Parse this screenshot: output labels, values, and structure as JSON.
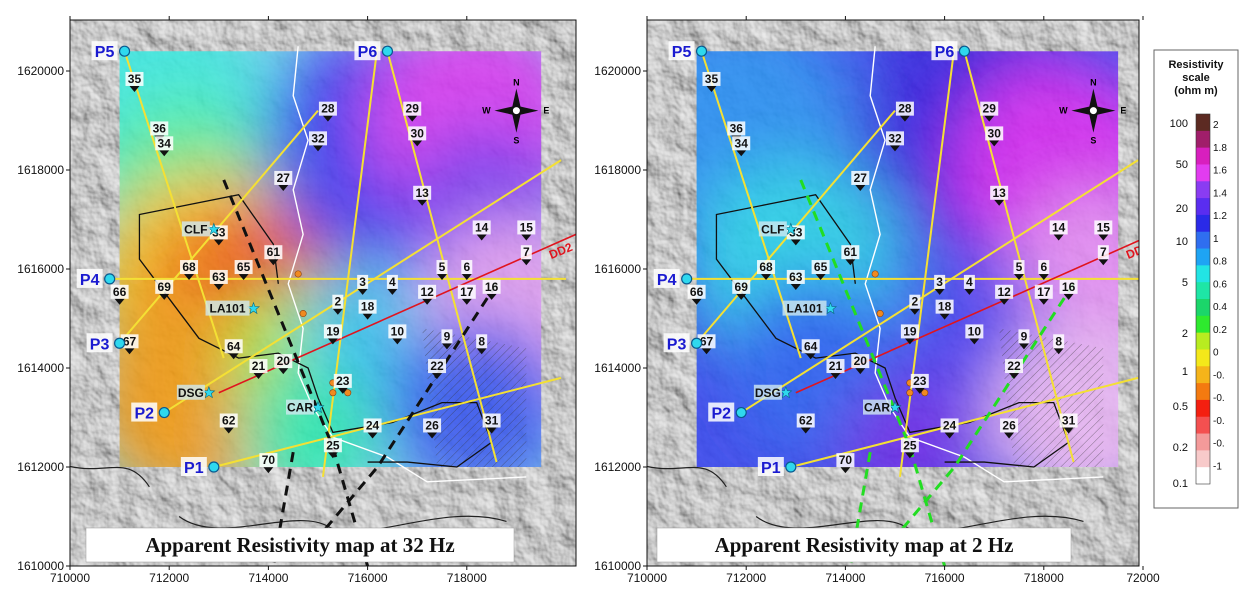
{
  "maps": [
    {
      "caption": "Apparent Resistivity map at 32 Hz",
      "variant": "32hz",
      "fault_color": "#111111",
      "x_ticks": [
        "710000",
        "712000",
        "714000",
        "716000",
        "718000"
      ],
      "y_ticks": [
        "1620000",
        "1618000",
        "1616000",
        "1614000",
        "1612000",
        "1610000"
      ]
    },
    {
      "caption": "Apparent Resistivity map at 2 Hz",
      "variant": "2hz",
      "fault_color": "#22dd22",
      "x_ticks": [
        "710000",
        "712000",
        "714000",
        "716000",
        "718000",
        "72000"
      ],
      "y_ticks": [
        "1620000",
        "1618000",
        "1616000",
        "1614000",
        "1612000",
        "1610000"
      ]
    }
  ],
  "profiles": [
    "P1",
    "P2",
    "P3",
    "P4",
    "P5",
    "P6"
  ],
  "line_label": "DD2",
  "sites": [
    "CLF",
    "LA101",
    "DSG",
    "CAR"
  ],
  "stations": [
    {
      "id": "35",
      "x": 711300,
      "y": 1619900
    },
    {
      "id": "36",
      "x": 711800,
      "y": 1618900
    },
    {
      "id": "34",
      "x": 711900,
      "y": 1618600
    },
    {
      "id": "28",
      "x": 715200,
      "y": 1619300
    },
    {
      "id": "29",
      "x": 716900,
      "y": 1619300
    },
    {
      "id": "30",
      "x": 717000,
      "y": 1618800
    },
    {
      "id": "32",
      "x": 715000,
      "y": 1618700
    },
    {
      "id": "27",
      "x": 714300,
      "y": 1617900
    },
    {
      "id": "13",
      "x": 717100,
      "y": 1617600
    },
    {
      "id": "14",
      "x": 718300,
      "y": 1616900
    },
    {
      "id": "15",
      "x": 719200,
      "y": 1616900
    },
    {
      "id": "7",
      "x": 719200,
      "y": 1616400
    },
    {
      "id": "33",
      "x": 713000,
      "y": 1616800
    },
    {
      "id": "61",
      "x": 714100,
      "y": 1616400
    },
    {
      "id": "68",
      "x": 712400,
      "y": 1616100
    },
    {
      "id": "65",
      "x": 713500,
      "y": 1616100
    },
    {
      "id": "63",
      "x": 713000,
      "y": 1615900
    },
    {
      "id": "66",
      "x": 711000,
      "y": 1615600
    },
    {
      "id": "69",
      "x": 711900,
      "y": 1615700
    },
    {
      "id": "3",
      "x": 715900,
      "y": 1615800
    },
    {
      "id": "4",
      "x": 716500,
      "y": 1615800
    },
    {
      "id": "5",
      "x": 717500,
      "y": 1616100
    },
    {
      "id": "6",
      "x": 718000,
      "y": 1616100
    },
    {
      "id": "12",
      "x": 717200,
      "y": 1615600
    },
    {
      "id": "17",
      "x": 718000,
      "y": 1615600
    },
    {
      "id": "16",
      "x": 718500,
      "y": 1615700
    },
    {
      "id": "2",
      "x": 715400,
      "y": 1615400
    },
    {
      "id": "18",
      "x": 716000,
      "y": 1615300
    },
    {
      "id": "19",
      "x": 715300,
      "y": 1614800
    },
    {
      "id": "10",
      "x": 716600,
      "y": 1614800
    },
    {
      "id": "9",
      "x": 717600,
      "y": 1614700
    },
    {
      "id": "8",
      "x": 718300,
      "y": 1614600
    },
    {
      "id": "67",
      "x": 711200,
      "y": 1614600
    },
    {
      "id": "64",
      "x": 713300,
      "y": 1614500
    },
    {
      "id": "21",
      "x": 713800,
      "y": 1614100
    },
    {
      "id": "20",
      "x": 714300,
      "y": 1614200
    },
    {
      "id": "22",
      "x": 717400,
      "y": 1614100
    },
    {
      "id": "23",
      "x": 715500,
      "y": 1613800
    },
    {
      "id": "62",
      "x": 713200,
      "y": 1613000
    },
    {
      "id": "24",
      "x": 716100,
      "y": 1612900
    },
    {
      "id": "26",
      "x": 717300,
      "y": 1612900
    },
    {
      "id": "31",
      "x": 718500,
      "y": 1613000
    },
    {
      "id": "25",
      "x": 715300,
      "y": 1612500
    },
    {
      "id": "70",
      "x": 714000,
      "y": 1612200
    }
  ],
  "legend": {
    "title": "Resistivity scale (ohm m)",
    "title_lines": [
      "Resistivity",
      "scale",
      "(ohm m)"
    ],
    "left_ticks": [
      "100",
      "50",
      "20",
      "10",
      "5",
      "2",
      "1",
      "0.5",
      "0.2",
      "0.1"
    ],
    "right_ticks": [
      "2",
      "1.8",
      "1.6",
      "1.4",
      "1.2",
      "1",
      "0.8",
      "0.6",
      "0.4",
      "0.2",
      "0",
      "-0.",
      "-0.",
      "-0.",
      "-0.",
      "-1"
    ],
    "colors": [
      "#5c2a22",
      "#a01e6a",
      "#d81fbe",
      "#e23cf0",
      "#8a3cf2",
      "#5a2df0",
      "#2a2ae8",
      "#2f6ef0",
      "#1ea4f4",
      "#22e4e4",
      "#1ee6a6",
      "#1bd66a",
      "#2eea2e",
      "#b8ec20",
      "#f4e81a",
      "#f5b41a",
      "#f47a10",
      "#f41f10",
      "#f45050",
      "#f49a9a",
      "#f8caca",
      "#ffffff"
    ]
  },
  "compass": {
    "n": "N",
    "s": "S",
    "e": "E",
    "w": "W"
  }
}
